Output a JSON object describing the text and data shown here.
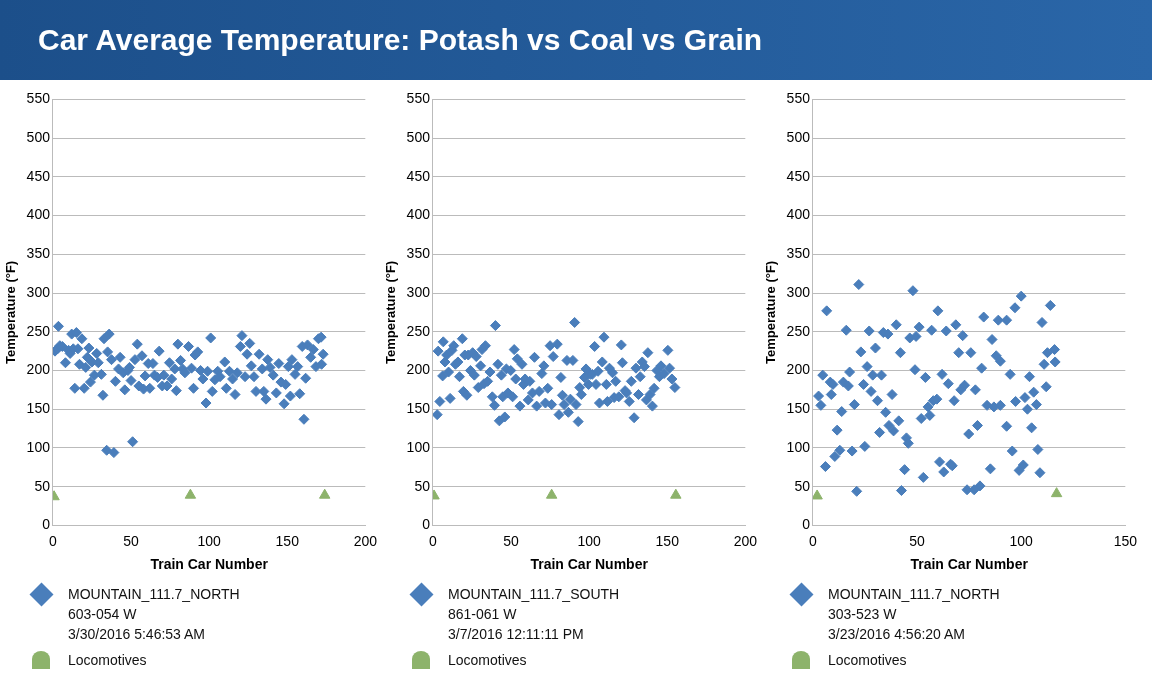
{
  "chart_data": [
    {
      "type": "scatter",
      "title": "Car Average Temperature: Potash vs Coal vs Grain",
      "xlabel": "Train Car Number",
      "ylabel": "Temperature (°F)",
      "xlim": [
        0,
        200
      ],
      "xticks": [
        0,
        50,
        100,
        150,
        200
      ],
      "ylim": [
        0,
        550
      ],
      "yticks": [
        0,
        50,
        100,
        150,
        200,
        250,
        300,
        350,
        400,
        450,
        500,
        550
      ],
      "grid": "y",
      "legend": "bottom",
      "series": [
        {
          "name": "MOUNTAIN_111.7_NORTH\n603-054 W\n3/30/2016 5:46:53 AM",
          "color": "#4a7ebb",
          "marker": "diamond",
          "x": [
            3.5,
            1.3,
            3,
            4.4,
            6,
            8,
            10,
            11,
            12,
            13,
            14,
            15,
            16,
            17,
            18.5,
            20,
            21,
            22,
            23,
            24,
            25,
            26.5,
            28,
            29,
            31,
            32,
            32.7,
            34.4,
            35,
            36,
            37.5,
            39,
            40,
            42,
            43,
            45,
            46,
            48,
            49,
            50,
            51,
            52.5,
            54,
            55,
            57,
            58,
            59,
            61,
            62,
            64,
            65,
            67,
            68,
            70,
            71,
            73,
            74.6,
            76,
            78,
            79,
            80,
            81.7,
            83,
            84.5,
            86.8,
            88.7,
            90,
            91,
            92.7,
            94.5,
            96,
            98,
            99,
            101,
            102,
            103.7,
            105.5,
            107,
            110,
            111,
            113,
            115,
            116.6,
            118,
            120,
            121,
            123,
            124.3,
            126,
            127,
            128.7,
            130,
            132,
            134,
            135,
            136.4,
            137.5,
            139,
            141,
            143,
            144.6,
            146,
            148,
            149,
            150.7,
            152,
            153,
            155,
            156.7,
            158,
            159.6,
            160.7,
            161.8,
            163,
            165,
            166.7,
            168.4,
            170,
            171.7,
            173,
            172
          ],
          "values": [
            257,
            225,
            228,
            232,
            231,
            210,
            226,
            222,
            247,
            228,
            177,
            249,
            228,
            208,
            241,
            177,
            204,
            217,
            229,
            185,
            211,
            194,
            222,
            210,
            195,
            168,
            241,
            97,
            224,
            247,
            214,
            94,
            186,
            202,
            217,
            197,
            175,
            200,
            204,
            187,
            108,
            214,
            234,
            180,
            219,
            176,
            193,
            209,
            177,
            209,
            194,
            191,
            225,
            180,
            194,
            180,
            210,
            189,
            202,
            174,
            234,
            213,
            202,
            197,
            231,
            203,
            177,
            220,
            224,
            200,
            189,
            158,
            199,
            242,
            173,
            188,
            199,
            192,
            211,
            177,
            199,
            189,
            169,
            197,
            231,
            245,
            192,
            221,
            235,
            206,
            192,
            173,
            221,
            202,
            173,
            163,
            214,
            204,
            194,
            171,
            209,
            185,
            157,
            182,
            205,
            167,
            214,
            195,
            205,
            170,
            231,
            137,
            190,
            233,
            217,
            227,
            205,
            241,
            243,
            221,
            208
          ]
        },
        {
          "name": "Locomotives",
          "color": "#8db36b",
          "marker": "triangle",
          "x": [
            0.7,
            88,
            174
          ],
          "values": [
            37,
            39,
            39
          ]
        }
      ]
    },
    {
      "type": "scatter",
      "xlabel": "Train Car Number",
      "ylabel": "Temperature (°F)",
      "xlim": [
        0,
        200
      ],
      "xticks": [
        0,
        50,
        100,
        150,
        200
      ],
      "ylim": [
        0,
        550
      ],
      "yticks": [
        0,
        50,
        100,
        150,
        200,
        250,
        300,
        350,
        400,
        450,
        500,
        550
      ],
      "grid": "y",
      "legend": "bottom",
      "series": [
        {
          "name": "MOUNTAIN_111.7_SOUTH\n861-061 W\n3/7/2016 12:11:11 PM",
          "color": "#4a7ebb",
          "marker": "diamond",
          "x": [
            2.7,
            3.3,
            4.4,
            6.6,
            6.2,
            7.7,
            8.8,
            10,
            11,
            12.2,
            13.3,
            14.4,
            16,
            17,
            18.8,
            19.5,
            20.4,
            21.7,
            22.6,
            24,
            25.4,
            26.5,
            27.7,
            29,
            30.5,
            31.4,
            32.7,
            33.6,
            35,
            36.5,
            38,
            39.4,
            40,
            41.6,
            42.5,
            43.8,
            44.7,
            46,
            47,
            48,
            49.8,
            51,
            52,
            53,
            54,
            55.7,
            57,
            58,
            59,
            61,
            62,
            63.7,
            65,
            66.4,
            68,
            69.7,
            71,
            72,
            73.5,
            75,
            76,
            77,
            79.6,
            80.7,
            81.9,
            82.9,
            84,
            85.8,
            86.7,
            88,
            89.6,
            90.7,
            91.6,
            93,
            94,
            95,
            97,
            98,
            99.6,
            100.7,
            102,
            103.5,
            104.4,
            105.7,
            106.6,
            108.4,
            109.5,
            111,
            111.7,
            113,
            115,
            116,
            117,
            119,
            120.6,
            121.3,
            123,
            124,
            125.7,
            127,
            128.8,
            130,
            131.6,
            132.7,
            134,
            135.4,
            136.7,
            137.6,
            139,
            140.5,
            141.6,
            143.4,
            145,
            146,
            148,
            150.4,
            151.5,
            153,
            154.9
          ],
          "values": [
            143,
            225,
            160,
            237,
            193,
            211,
            220,
            198,
            164,
            226,
            232,
            208,
            211,
            192,
            241,
            173,
            220,
            168,
            220,
            200,
            223,
            194,
            218,
            178,
            206,
            227,
            183,
            232,
            186,
            198,
            166,
            155,
            258,
            208,
            135,
            194,
            166,
            140,
            202,
            171,
            200,
            166,
            227,
            189,
            215,
            154,
            208,
            182,
            189,
            162,
            186,
            171,
            217,
            154,
            173,
            196,
            206,
            158,
            177,
            232,
            156,
            218,
            234,
            143,
            191,
            168,
            156,
            213,
            146,
            163,
            213,
            262,
            156,
            134,
            178,
            169,
            191,
            202,
            182,
            195,
            195,
            231,
            182,
            199,
            158,
            211,
            243,
            182,
            160,
            203,
            197,
            165,
            186,
            166,
            233,
            210,
            174,
            171,
            160,
            186,
            139,
            203,
            169,
            192,
            211,
            205,
            162,
            223,
            169,
            154,
            177,
            200,
            192,
            206,
            196,
            226,
            203,
            189,
            178
          ]
        },
        {
          "name": "Locomotives",
          "color": "#8db36b",
          "marker": "triangle",
          "x": [
            0.7,
            76,
            155.5
          ],
          "values": [
            38,
            39,
            39
          ]
        }
      ]
    },
    {
      "type": "scatter",
      "xlabel": "Train Car Number",
      "ylabel": "Temperature (°F)",
      "xlim": [
        0,
        150
      ],
      "xticks": [
        0,
        50,
        100,
        150
      ],
      "ylim": [
        0,
        550
      ],
      "yticks": [
        0,
        50,
        100,
        150,
        200,
        250,
        300,
        350,
        400,
        450,
        500,
        550
      ],
      "grid": "y",
      "legend": "bottom",
      "series": [
        {
          "name": "MOUNTAIN_111.7_NORTH\n303-523 W\n3/23/2016 4:56:20 AM",
          "color": "#4a7ebb",
          "marker": "diamond",
          "x": [
            22,
            48,
            6.6,
            100,
            114,
            97,
            60,
            82,
            89,
            93,
            110,
            40,
            68.6,
            16,
            27,
            33.8,
            36,
            51,
            57,
            64,
            71.9,
            46.5,
            49.5,
            86,
            30,
            23,
            42,
            70,
            75.8,
            116,
            112.6,
            88,
            90,
            116.3,
            111,
            26,
            49,
            81,
            17.6,
            4.7,
            28.7,
            32.9,
            62,
            94.7,
            104,
            8.3,
            9.6,
            14.6,
            17,
            54,
            65,
            72.8,
            71,
            78,
            24.3,
            27.9,
            112,
            106,
            2.7,
            8.8,
            38,
            101.8,
            31,
            57.8,
            59.5,
            67.8,
            90,
            83.6,
            86.9,
            97.3,
            107.3,
            3.8,
            19.9,
            55.3,
            103,
            13.8,
            34.9,
            52,
            56.1,
            41.2,
            36.5,
            38.7,
            79,
            93,
            11.6,
            105,
            32,
            74.8,
            44.9,
            45.8,
            24.9,
            12.9,
            18.8,
            95.7,
            108,
            10.5,
            6,
            60.8,
            66.1,
            66.9,
            62.8,
            85.2,
            99,
            101,
            109,
            44,
            53,
            80.2,
            74,
            77.4,
            21,
            42.5
          ],
          "values": [
            311,
            303,
            277,
            296,
            284,
            281,
            277,
            269,
            265,
            265,
            262,
            259,
            259,
            252,
            251,
            249,
            247,
            256,
            252,
            251,
            245,
            242,
            244,
            240,
            229,
            224,
            223,
            223,
            223,
            227,
            223,
            219,
            212,
            211,
            208,
            205,
            201,
            203,
            198,
            194,
            194,
            194,
            195,
            195,
            192,
            185,
            182,
            185,
            180,
            191,
            183,
            181,
            175,
            175,
            182,
            173,
            179,
            172,
            167,
            169,
            169,
            165,
            161,
            161,
            163,
            161,
            155,
            155,
            153,
            160,
            156,
            155,
            156,
            153,
            150,
            147,
            146,
            138,
            142,
            135,
            129,
            122,
            129,
            128,
            123,
            126,
            120,
            118,
            113,
            106,
            102,
            97,
            96,
            96,
            98,
            89,
            76,
            82,
            79,
            77,
            69,
            73,
            71,
            78,
            68,
            72,
            62,
            51,
            46,
            46,
            44,
            45
          ]
        },
        {
          "name": "Locomotives",
          "color": "#8db36b",
          "marker": "triangle",
          "x": [
            2,
            117
          ],
          "values": [
            38,
            41
          ]
        }
      ]
    }
  ]
}
